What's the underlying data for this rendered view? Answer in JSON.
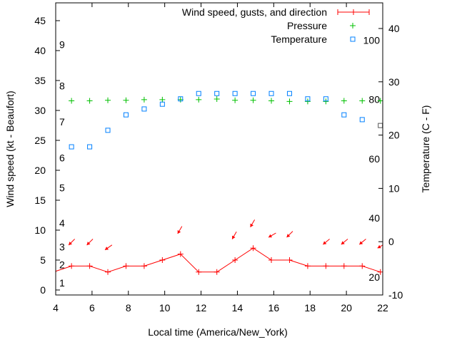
{
  "chart_data": {
    "type": "line",
    "xlabel": "Local time (America/New_York)",
    "ylabel": "Wind speed (kt - Beaufort)",
    "y2label": "Temperature (C - F)",
    "xlim": [
      4,
      22
    ],
    "ylim": [
      -1,
      48
    ],
    "y2lim": [
      -10,
      44.5
    ],
    "xticks": [
      4,
      6,
      8,
      10,
      12,
      14,
      16,
      18,
      20,
      22
    ],
    "yticks": [
      0,
      5,
      10,
      15,
      20,
      25,
      30,
      35,
      40,
      45
    ],
    "y2ticks": [
      -10,
      0,
      10,
      20,
      30,
      40
    ],
    "beaufort_labels": [
      {
        "label": "1",
        "kt": 1.2
      },
      {
        "label": "2",
        "kt": 4.2
      },
      {
        "label": "3",
        "kt": 7.2
      },
      {
        "label": "4",
        "kt": 11.2
      },
      {
        "label": "5",
        "kt": 17.1
      },
      {
        "label": "6",
        "kt": 22.1
      },
      {
        "label": "7",
        "kt": 28.1
      },
      {
        "label": "8",
        "kt": 34.1
      },
      {
        "label": "9",
        "kt": 41
      }
    ],
    "fahrenheit_labels": [
      20,
      40,
      60,
      80,
      100
    ],
    "legend": {
      "placement": "top-right",
      "entries": [
        "Wind speed, gusts, and direction",
        "Pressure",
        "Temperature"
      ]
    },
    "colors": {
      "wind": "#ff0000",
      "pressure": "#00c000",
      "temperature": "#0080ff"
    },
    "x": [
      3.87,
      4.87,
      5.87,
      6.87,
      7.87,
      8.87,
      9.87,
      10.87,
      11.87,
      12.87,
      13.87,
      14.87,
      15.87,
      16.87,
      17.87,
      18.87,
      19.87,
      20.87,
      21.87
    ],
    "series": [
      {
        "name": "Wind speed",
        "values": [
          3,
          4,
          4,
          3,
          4,
          4,
          5,
          6,
          3,
          3,
          5,
          7,
          5,
          5,
          4,
          4,
          4,
          4,
          3
        ]
      },
      {
        "name": "Pressure",
        "values": [
          null,
          31.6,
          31.6,
          31.7,
          31.7,
          31.8,
          31.8,
          31.8,
          31.8,
          31.9,
          31.7,
          31.7,
          31.6,
          31.5,
          31.5,
          31.5,
          31.6,
          31.6,
          31.6
        ]
      },
      {
        "name": "Temperature",
        "axis": "y2",
        "values": [
          null,
          17.8,
          17.8,
          20.9,
          23.8,
          24.9,
          25.8,
          26.8,
          27.8,
          27.8,
          27.8,
          27.8,
          27.8,
          27.8,
          26.8,
          26.8,
          23.8,
          22.9,
          21.8
        ]
      }
    ],
    "gust_arrows": [
      {
        "x": 4.87,
        "kt": 7.5,
        "from_deg": 45
      },
      {
        "x": 5.87,
        "kt": 7.5,
        "from_deg": 45
      },
      {
        "x": 6.87,
        "kt": 6.7,
        "from_deg": 55
      },
      {
        "x": 10.87,
        "kt": 9.4,
        "from_deg": 30
      },
      {
        "x": 13.87,
        "kt": 8.5,
        "from_deg": 30
      },
      {
        "x": 14.87,
        "kt": 10.5,
        "from_deg": 30
      },
      {
        "x": 15.87,
        "kt": 8.8,
        "from_deg": 60
      },
      {
        "x": 16.87,
        "kt": 8.8,
        "from_deg": 45
      },
      {
        "x": 18.87,
        "kt": 7.6,
        "from_deg": 50
      },
      {
        "x": 19.87,
        "kt": 7.6,
        "from_deg": 50
      },
      {
        "x": 20.87,
        "kt": 7.6,
        "from_deg": 50
      },
      {
        "x": 21.87,
        "kt": 7.0,
        "from_deg": 60
      }
    ]
  }
}
